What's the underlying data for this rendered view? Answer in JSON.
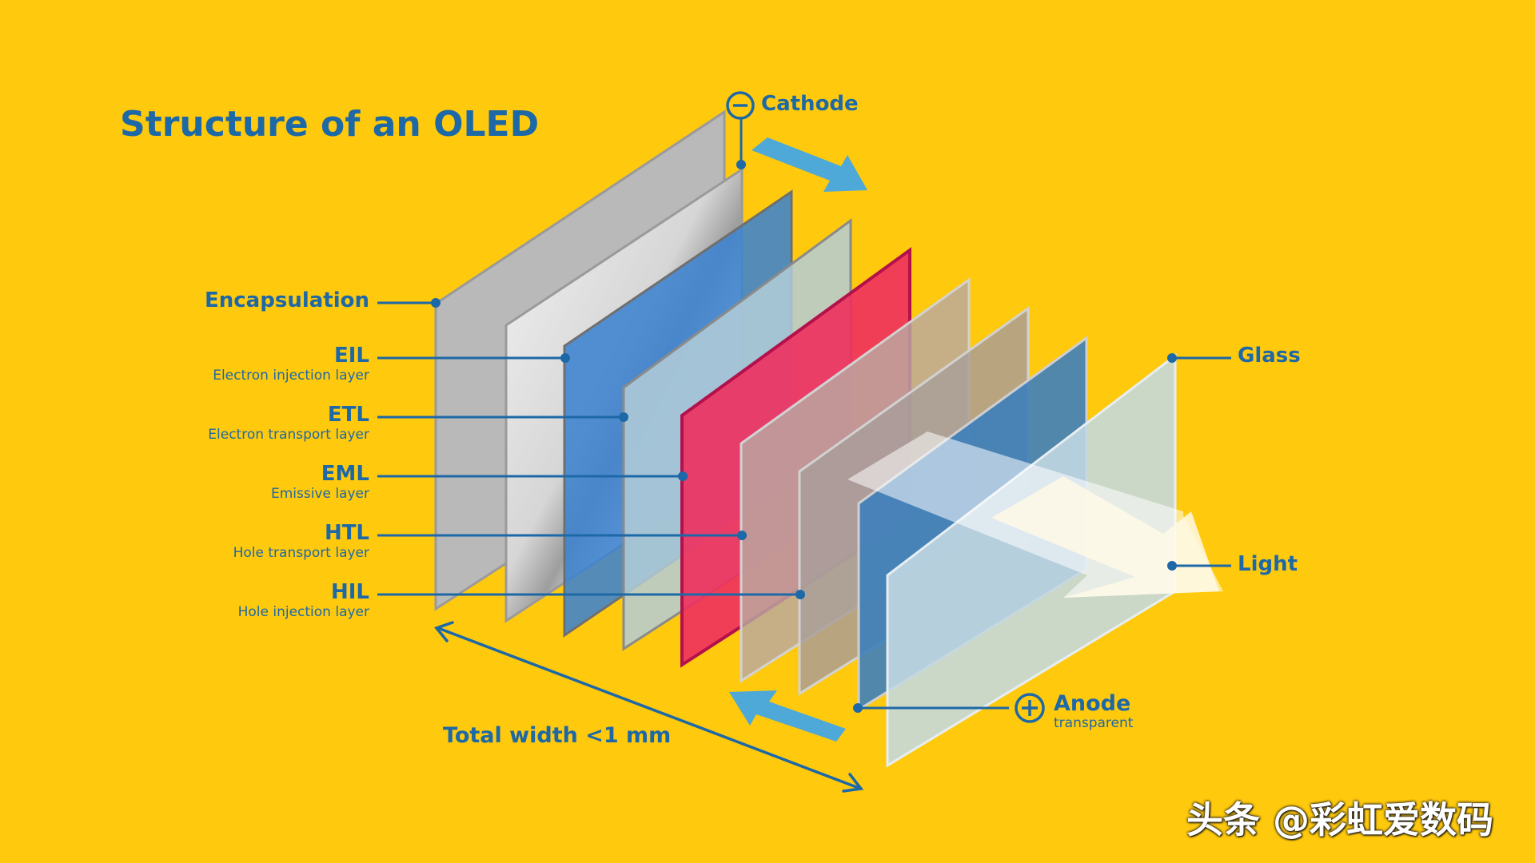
{
  "title": "Structure of an OLED",
  "layers_left": [
    {
      "id": "encapsulation",
      "name": "Encapsulation",
      "desc": ""
    },
    {
      "id": "eil",
      "name": "EIL",
      "desc": "Electron injection layer"
    },
    {
      "id": "etl",
      "name": "ETL",
      "desc": "Electron transport layer"
    },
    {
      "id": "eml",
      "name": "EML",
      "desc": "Emissive layer"
    },
    {
      "id": "htl",
      "name": "HTL",
      "desc": "Hole transport layer"
    },
    {
      "id": "hil",
      "name": "HIL",
      "desc": "Hole injection layer"
    }
  ],
  "cathode": {
    "symbol": "−",
    "label": "Cathode"
  },
  "anode": {
    "symbol": "+",
    "label": "Anode",
    "desc": "transparent"
  },
  "glass": {
    "label": "Glass"
  },
  "light": {
    "label": "Light"
  },
  "total_width": "Total width <1 mm",
  "watermark": "头条 @彩虹爱数码",
  "colors": {
    "background": "#FFC90D",
    "text": "#1D68A6",
    "arrow": "#4EA8D8",
    "encapsulation": "#B9B9B9",
    "eil": "#3E83CF",
    "etl": "#A9C5D6",
    "eml": "#E7245F",
    "htl": "#B5A69E",
    "hil": "#A89E9A",
    "anode_layer": "#3D7FBB",
    "glass_layer": "#BFD6DF"
  }
}
